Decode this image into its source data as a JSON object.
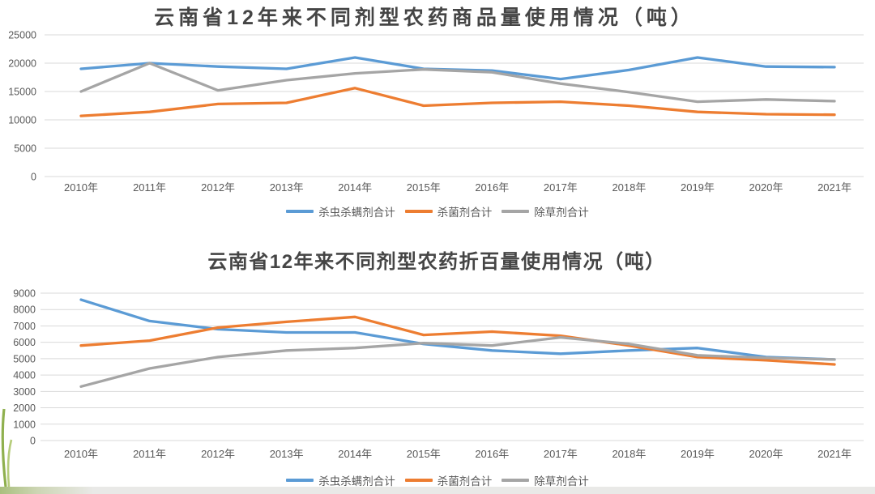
{
  "page": {
    "background": "#ffffff",
    "title_color": "#454545",
    "axis_label_color": "#595959",
    "gridline_color": "#d9d9d9",
    "footer_strip_colors": [
      "#a9bf7d",
      "#e9e9e7"
    ],
    "grass_colors": [
      "#8fb04e",
      "#b5cc7a"
    ]
  },
  "chart_data": [
    {
      "type": "line",
      "title": "云南省12年来不同剂型农药商品量使用情况（吨）",
      "categories": [
        "2010年",
        "2011年",
        "2012年",
        "2013年",
        "2014年",
        "2015年",
        "2016年",
        "2017年",
        "2018年",
        "2019年",
        "2020年",
        "2021年"
      ],
      "xlabel": "",
      "ylabel": "",
      "ylim": [
        0,
        25000
      ],
      "ytick_step": 5000,
      "ytick_labels": [
        "0",
        "5000",
        "10000",
        "15000",
        "20000",
        "25000"
      ],
      "grid": true,
      "legend_position": "bottom",
      "series": [
        {
          "name": "杀虫杀螨剂合计",
          "color": "#5B9BD5",
          "values": [
            19000,
            20000,
            19400,
            19000,
            21000,
            19000,
            18700,
            17200,
            18800,
            21000,
            19400,
            19300
          ]
        },
        {
          "name": "杀菌剂合计",
          "color": "#ED7D31",
          "values": [
            10700,
            11400,
            12800,
            13000,
            15600,
            12500,
            13000,
            13200,
            12500,
            11400,
            11000,
            10900
          ]
        },
        {
          "name": "除草剂合计",
          "color": "#A5A5A5",
          "values": [
            15000,
            20000,
            15200,
            17000,
            18200,
            18900,
            18400,
            16400,
            14900,
            13200,
            13600,
            13300
          ]
        }
      ]
    },
    {
      "type": "line",
      "title": "云南省12年来不同剂型农药折百量使用情况（吨）",
      "categories": [
        "2010年",
        "2011年",
        "2012年",
        "2013年",
        "2014年",
        "2015年",
        "2016年",
        "2017年",
        "2018年",
        "2019年",
        "2020年",
        "2021年"
      ],
      "xlabel": "",
      "ylabel": "",
      "ylim": [
        0,
        9000
      ],
      "ytick_step": 1000,
      "ytick_labels": [
        "0",
        "1000",
        "2000",
        "3000",
        "4000",
        "5000",
        "6000",
        "7000",
        "8000",
        "9000"
      ],
      "grid": true,
      "legend_position": "bottom",
      "series": [
        {
          "name": "杀虫杀螨剂合计",
          "color": "#5B9BD5",
          "values": [
            8600,
            7300,
            6800,
            6600,
            6600,
            5900,
            5500,
            5300,
            5500,
            5650,
            5100,
            4950
          ]
        },
        {
          "name": "杀菌剂合计",
          "color": "#ED7D31",
          "values": [
            5800,
            6100,
            6900,
            7250,
            7550,
            6450,
            6650,
            6400,
            5800,
            5100,
            4900,
            4650
          ]
        },
        {
          "name": "除草剂合计",
          "color": "#A5A5A5",
          "values": [
            3300,
            4400,
            5100,
            5500,
            5650,
            5950,
            5800,
            6300,
            5900,
            5200,
            5050,
            4950
          ]
        }
      ]
    }
  ]
}
